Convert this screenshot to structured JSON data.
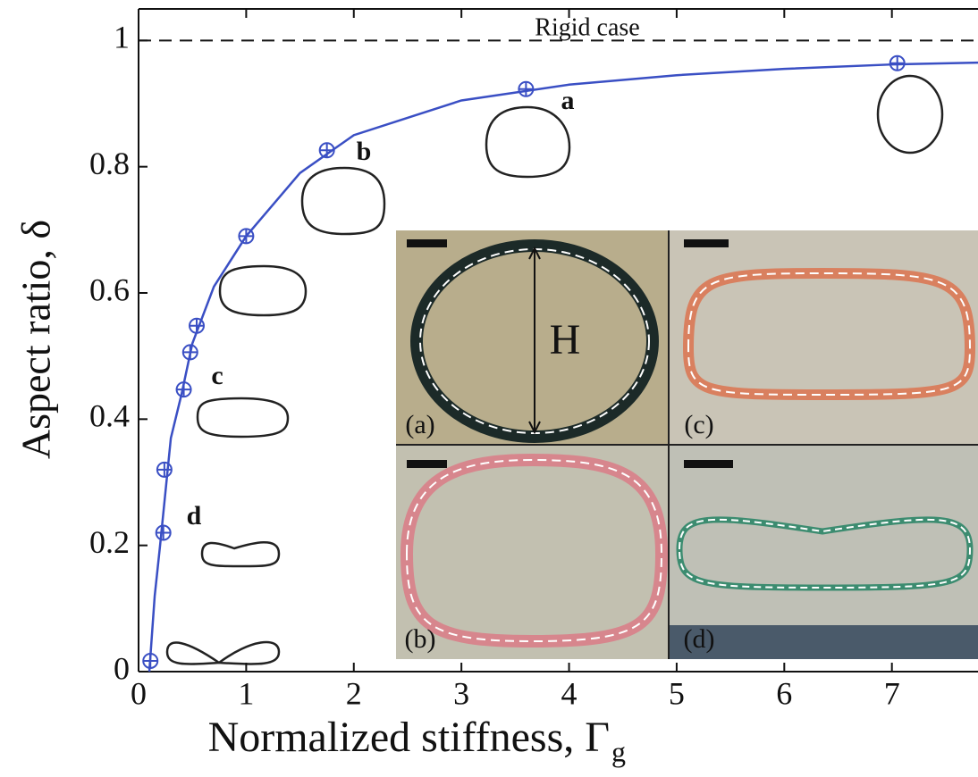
{
  "chart_data": {
    "type": "scatter",
    "x_label": "Normalized stiffness, Γ",
    "x_label_subscript": "g",
    "y_label": "Aspect ratio, δ",
    "xlim": [
      0,
      7.8
    ],
    "xticks": [
      0,
      1,
      2,
      3,
      4,
      5,
      6,
      7
    ],
    "ylim": [
      0,
      1.05
    ],
    "yticks": [
      0,
      0.2,
      0.4,
      0.6,
      0.8,
      1
    ],
    "reference_line": 1,
    "series": [
      {
        "kind": "line",
        "color": "#3a4fc4",
        "x": [
          0.1,
          0.15,
          0.2,
          0.3,
          0.4,
          0.5,
          0.7,
          1,
          1.5,
          2,
          3,
          4,
          5,
          6,
          7,
          7.8
        ],
        "values": [
          0.0,
          0.12,
          0.2,
          0.37,
          0.44,
          0.52,
          0.61,
          0.69,
          0.79,
          0.85,
          0.905,
          0.93,
          0.945,
          0.955,
          0.962,
          0.965
        ]
      },
      {
        "kind": "marker",
        "color": "#3a4fc4",
        "x": [
          0.11,
          0.23,
          0.24,
          0.42,
          0.48,
          0.54,
          1.0,
          1.75,
          3.6,
          7.05
        ],
        "values": [
          0.017,
          0.22,
          0.32,
          0.447,
          0.506,
          0.548,
          0.69,
          0.826,
          0.923,
          0.964
        ]
      }
    ],
    "annotations": [
      "Rigid case",
      "a",
      "b",
      "c",
      "d"
    ],
    "inset_labels": [
      "(a)",
      "(b)",
      "(c)",
      "(d)",
      "H"
    ]
  }
}
